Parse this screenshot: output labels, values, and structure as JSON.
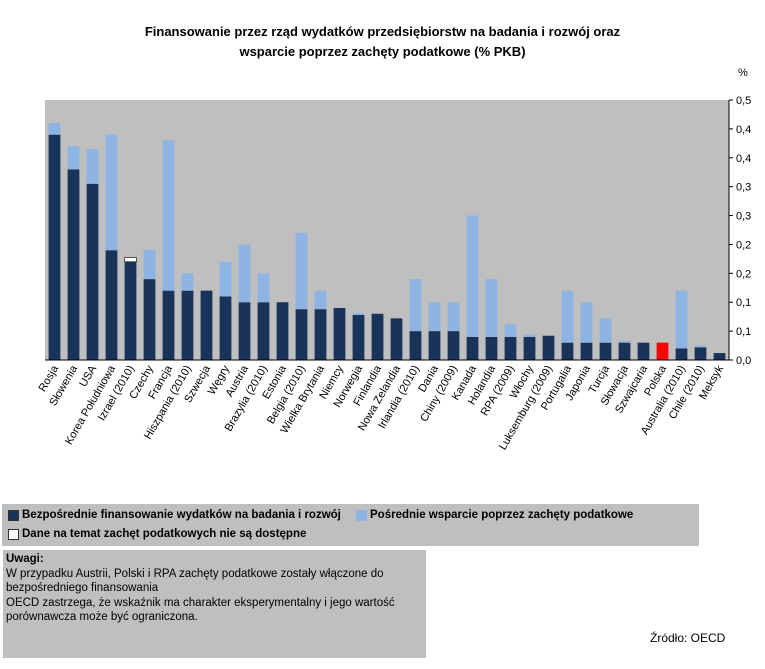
{
  "chart_data": {
    "type": "bar",
    "stacked": true,
    "title_lines": [
      "Finansowanie przez rząd wydatków przedsiębiorstw na badania i rozwój oraz",
      "wsparcie poprzez zachęty podatkowe (% PKB)"
    ],
    "ylabel": "%",
    "ylim": [
      0,
      0.45
    ],
    "yticks": [
      0.0,
      0.05,
      0.1,
      0.15,
      0.2,
      0.25,
      0.3,
      0.35,
      0.4,
      0.45
    ],
    "ytick_labels": [
      "0,0",
      "0,1",
      "0,1",
      "0,2",
      "0,2",
      "0,3",
      "0,3",
      "0,4",
      "0,4",
      "0,5"
    ],
    "grid": false,
    "categories": [
      "Rosja",
      "Słowenia",
      "USA",
      "Korea Południowa",
      "Izrael (2010)",
      "Czechy",
      "Francja",
      "Hiszpania (2010)",
      "Szwecja",
      "Węgry",
      "Austria",
      "Brazylia (2010)",
      "Estonia",
      "Belgia (2010)",
      "Wielka Brytania",
      "Niemcy",
      "Norwegia",
      "Finlandia",
      "Nowa Zelandia",
      "Irlandia (2010)",
      "Dania",
      "Chiny (2009)",
      "Kanada",
      "Holandia",
      "RPA (2009)",
      "Włochy",
      "Luksemburg (2009)",
      "Portugalia",
      "Japonia",
      "Turcja",
      "Słowacja",
      "Szwajcaria",
      "Polska",
      "Australia (2010)",
      "Chile (2010)",
      "Meksyk"
    ],
    "series": [
      {
        "name": "Bezpośrednie finansowanie wydatków na badania i rozwój",
        "color": "#1a3358",
        "values": [
          0.39,
          0.33,
          0.305,
          0.19,
          0.17,
          0.14,
          0.12,
          0.12,
          0.12,
          0.11,
          0.1,
          0.1,
          0.1,
          0.088,
          0.088,
          0.09,
          0.078,
          0.08,
          0.072,
          0.05,
          0.05,
          0.05,
          0.04,
          0.04,
          0.04,
          0.04,
          0.042,
          0.03,
          0.03,
          0.03,
          0.03,
          0.03,
          0.03,
          0.02,
          0.022,
          0.012
        ]
      },
      {
        "name": "Pośrednie wsparcie poprzez zachęty podatkowe",
        "color": "#8db4e2",
        "values": [
          0.02,
          0.04,
          0.06,
          0.2,
          0,
          0.05,
          0.26,
          0.03,
          0,
          0.06,
          0.1,
          0.05,
          0,
          0.132,
          0.032,
          0,
          0.003,
          0,
          0,
          0.09,
          0.05,
          0.05,
          0.21,
          0.1,
          0.022,
          0.004,
          0,
          0.09,
          0.07,
          0.042,
          0.003,
          0,
          0,
          0.1,
          0.003,
          0
        ]
      },
      {
        "name": "Dane na temat zachęt podatkowych nie są dostępne",
        "color": "#ffffff",
        "values": [
          0,
          0,
          0,
          0,
          0.007,
          0,
          0,
          0,
          0,
          0,
          0,
          0,
          0,
          0,
          0,
          0,
          0,
          0,
          0,
          0,
          0,
          0,
          0,
          0,
          0,
          0,
          0,
          0,
          0,
          0,
          0,
          0,
          0,
          0,
          0,
          0
        ]
      }
    ],
    "highlight": {
      "category": "Polska",
      "color": "#ff0000"
    }
  },
  "legend": {
    "direct": "Bezpośrednie finansowanie wydatków na badania i rozwój",
    "indirect": "Pośrednie wsparcie poprzez zachęty podatkowe",
    "na": "Dane na temat zachęt podatkowych nie są dostępne"
  },
  "notes": {
    "heading": "Uwagi:",
    "line1": "W przypadku Austrii, Polski i RPA zachęty podatkowe zostały włączone do",
    "line2": "bezpośredniego finansowania",
    "line3": "OECD zastrzega, że wskaźnik ma charakter eksperymentalny i jego wartość",
    "line4": "porównawcza może być ograniczona."
  },
  "source": "Źródło: OECD"
}
